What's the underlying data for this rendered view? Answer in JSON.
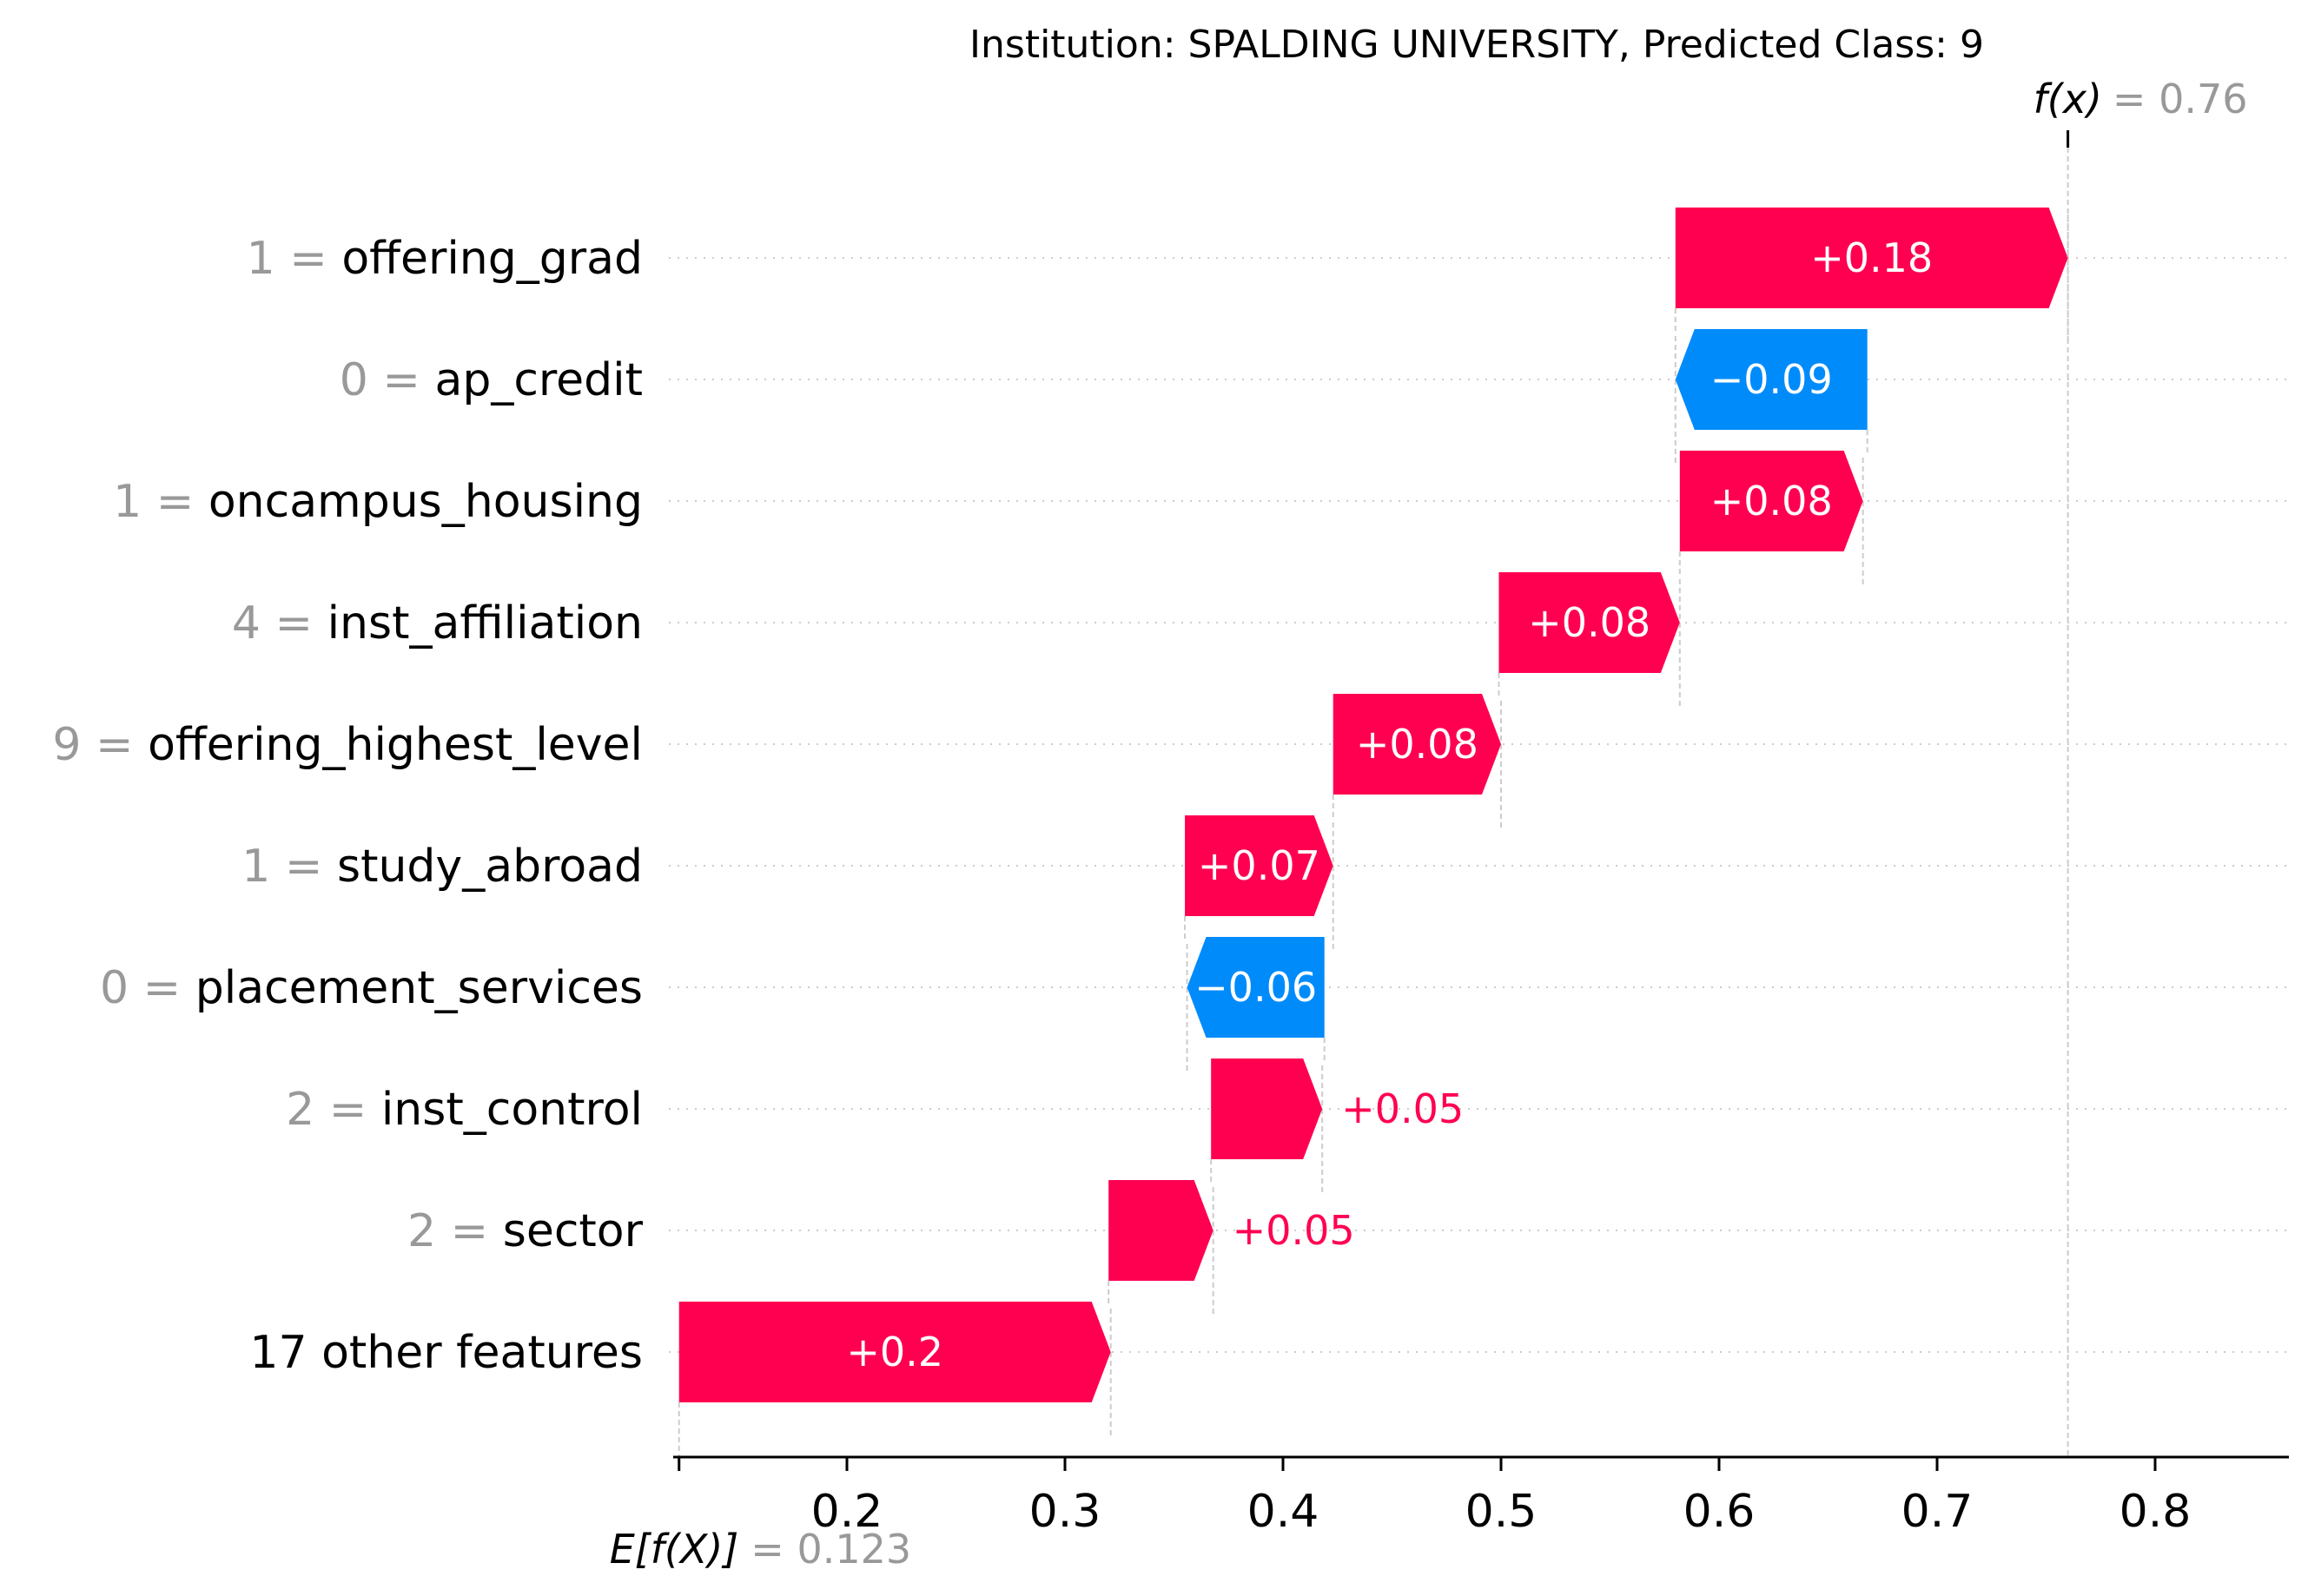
{
  "chart_data": {
    "type": "waterfall",
    "title": "Institution: SPALDING UNIVERSITY, Predicted Class: 9",
    "base_value": {
      "label": "E[f(X)]",
      "value": 0.123,
      "text": "0.123"
    },
    "output_value": {
      "label": "f(x)",
      "value": 0.76,
      "text": "0.76"
    },
    "xlim": [
      0.12,
      0.86
    ],
    "xticks": [
      0.2,
      0.3,
      0.4,
      0.5,
      0.6,
      0.7,
      0.8
    ],
    "xtick_labels": [
      "0.2",
      "0.3",
      "0.4",
      "0.5",
      "0.6",
      "0.7",
      "0.8"
    ],
    "features": [
      {
        "value": "1",
        "name": "offering_grad",
        "contribution": 0.18,
        "label": "+0.18",
        "start": 0.58,
        "end": 0.76
      },
      {
        "value": "0",
        "name": "ap_credit",
        "contribution": -0.09,
        "label": "−0.09",
        "start": 0.668,
        "end": 0.58
      },
      {
        "value": "1",
        "name": "oncampus_housing",
        "contribution": 0.08,
        "label": "+0.08",
        "start": 0.582,
        "end": 0.666
      },
      {
        "value": "4",
        "name": "inst_affiliation",
        "contribution": 0.08,
        "label": "+0.08",
        "start": 0.499,
        "end": 0.582
      },
      {
        "value": "9",
        "name": "offering_highest_level",
        "contribution": 0.08,
        "label": "+0.08",
        "start": 0.423,
        "end": 0.5
      },
      {
        "value": "1",
        "name": "study_abroad",
        "contribution": 0.07,
        "label": "+0.07",
        "start": 0.355,
        "end": 0.423
      },
      {
        "value": "0",
        "name": "placement_services",
        "contribution": -0.06,
        "label": "−0.06",
        "start": 0.419,
        "end": 0.356
      },
      {
        "value": "2",
        "name": "inst_control",
        "contribution": 0.05,
        "label": "+0.05",
        "start": 0.367,
        "end": 0.418
      },
      {
        "value": "2",
        "name": "sector",
        "contribution": 0.05,
        "label": "+0.05",
        "start": 0.32,
        "end": 0.368
      },
      {
        "value": "",
        "name": "17 other features",
        "contribution": 0.2,
        "label": "+0.2",
        "start": 0.123,
        "end": 0.321
      }
    ],
    "colors": {
      "positive": "#ff0051",
      "negative": "#008bfb",
      "muted": "#999999",
      "axis": "#000000",
      "grid": "#cccccc"
    }
  }
}
